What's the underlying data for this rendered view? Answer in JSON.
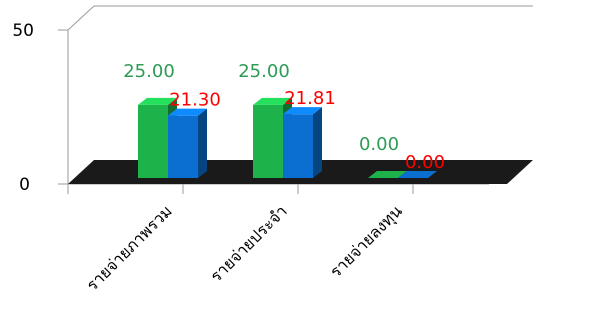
{
  "chart_data": {
    "type": "bar",
    "categories": [
      "รายจ่ายภาพรวม",
      "รายจ่ายประจำ",
      "รายจ่ายลงทุน"
    ],
    "series": [
      {
        "values": [
          25.0,
          25.0,
          0.0
        ],
        "color": "#1db34a",
        "label_color": "#2e9b57"
      },
      {
        "values": [
          21.3,
          21.81,
          0.0
        ],
        "color": "#0a6fd1",
        "label_color": "#ff0000"
      }
    ],
    "data_labels": [
      [
        "25.00",
        "25.00",
        "0.00"
      ],
      [
        "21.30",
        "21.81",
        "0.00"
      ]
    ],
    "yticks": [
      "0",
      "50"
    ],
    "ylim": [
      0,
      50
    ],
    "floor_color": "#1a1a1a",
    "grid": false,
    "legend": "none"
  }
}
